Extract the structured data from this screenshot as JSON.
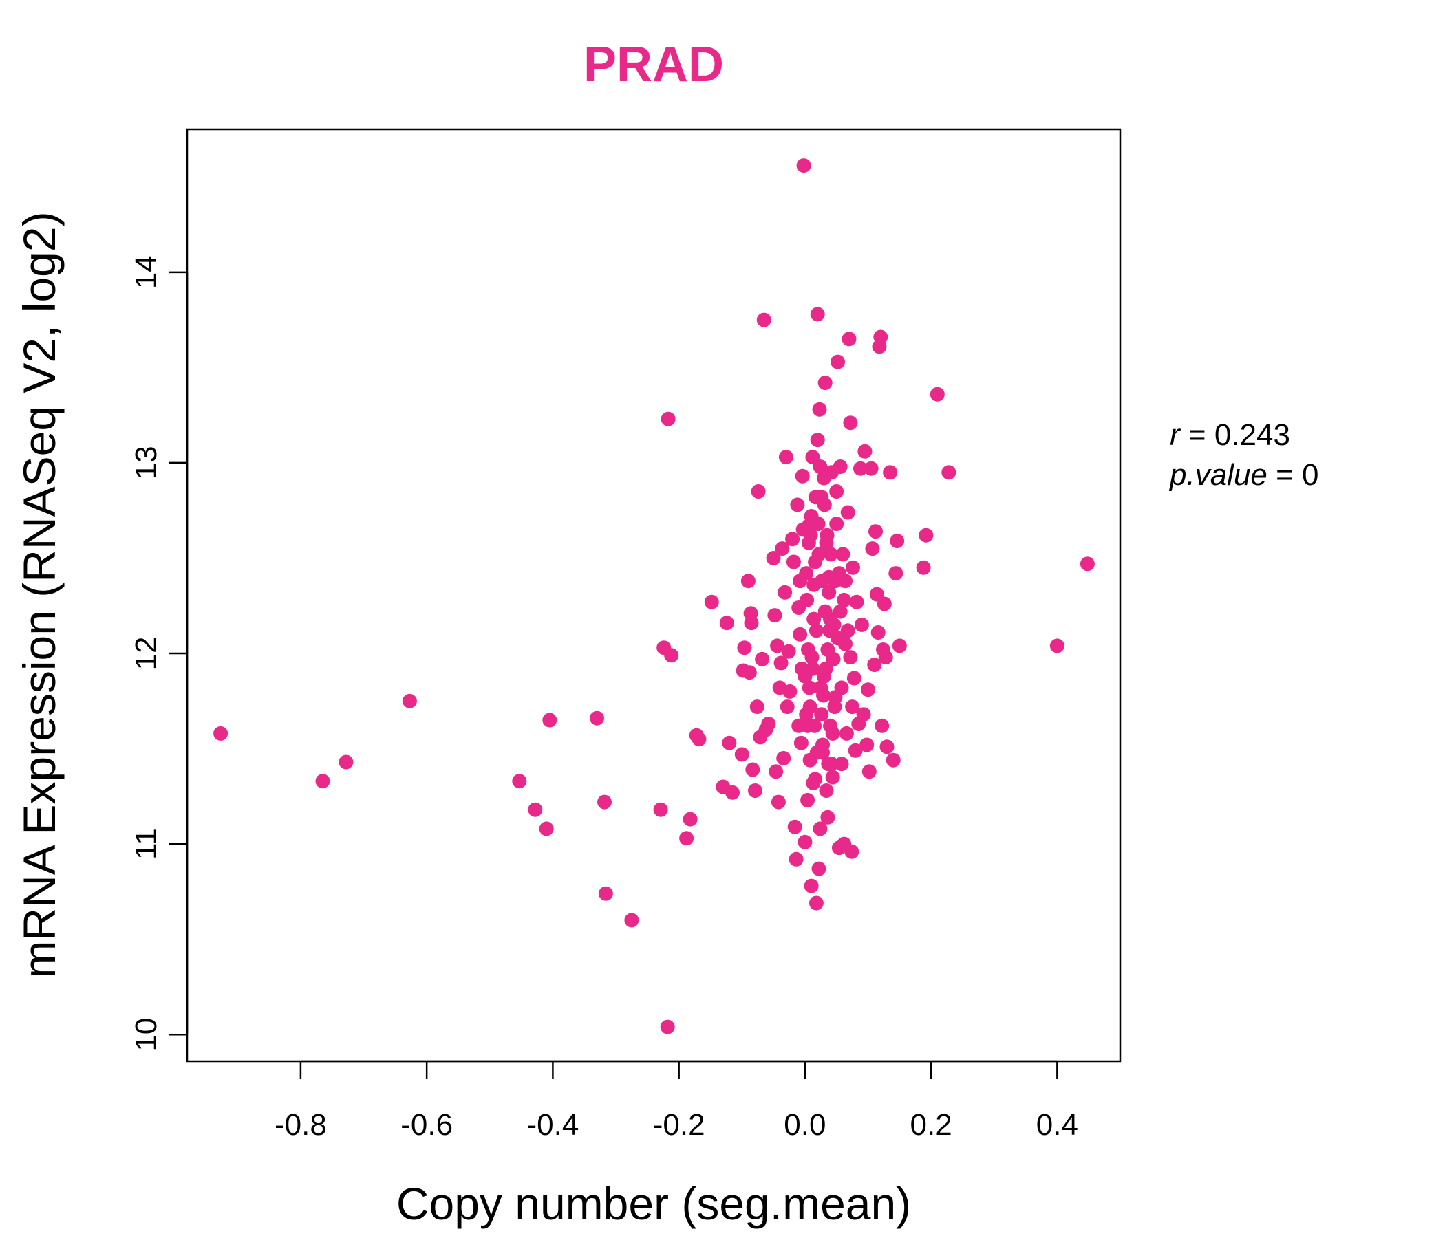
{
  "colors": {
    "point": "#E8298A",
    "title": "#E8298A",
    "axis": "#000000"
  },
  "chart_data": {
    "type": "scatter",
    "title": "PRAD",
    "xlabel": "Copy number (seg.mean)",
    "ylabel": "mRNA Expression (RNASeq V2, log2)",
    "xlim": [
      -0.98,
      0.5
    ],
    "ylim": [
      9.86,
      14.75
    ],
    "xticks": [
      -0.8,
      -0.6,
      -0.4,
      -0.2,
      0.0,
      0.2,
      0.4
    ],
    "xtick_labels": [
      "-0.8",
      "-0.6",
      "-0.4",
      "-0.2",
      "0.0",
      "0.2",
      "0.4"
    ],
    "yticks": [
      10,
      11,
      12,
      13,
      14
    ],
    "ytick_labels": [
      "10",
      "11",
      "12",
      "13",
      "14"
    ],
    "stats": {
      "r_label": "r",
      "r_value": "0.243",
      "p_label": "p.value",
      "p_value": "0"
    },
    "points": [
      [
        -0.927,
        11.58
      ],
      [
        -0.765,
        11.33
      ],
      [
        -0.728,
        11.43
      ],
      [
        -0.627,
        11.75
      ],
      [
        -0.453,
        11.33
      ],
      [
        -0.428,
        11.18
      ],
      [
        -0.41,
        11.08
      ],
      [
        -0.405,
        11.65
      ],
      [
        -0.33,
        11.66
      ],
      [
        -0.318,
        11.22
      ],
      [
        -0.316,
        10.74
      ],
      [
        -0.275,
        10.6
      ],
      [
        -0.229,
        11.18
      ],
      [
        -0.224,
        12.03
      ],
      [
        -0.218,
        10.04
      ],
      [
        -0.217,
        13.23
      ],
      [
        -0.212,
        11.99
      ],
      [
        -0.188,
        11.03
      ],
      [
        -0.182,
        11.13
      ],
      [
        -0.172,
        11.57
      ],
      [
        -0.168,
        11.55
      ],
      [
        -0.148,
        12.27
      ],
      [
        -0.13,
        11.3
      ],
      [
        -0.124,
        12.16
      ],
      [
        -0.12,
        11.53
      ],
      [
        -0.115,
        11.27
      ],
      [
        -0.1,
        11.47
      ],
      [
        -0.098,
        11.91
      ],
      [
        -0.096,
        12.03
      ],
      [
        -0.09,
        12.38
      ],
      [
        -0.088,
        11.9
      ],
      [
        -0.086,
        12.21
      ],
      [
        -0.085,
        12.16
      ],
      [
        -0.083,
        11.39
      ],
      [
        -0.079,
        11.28
      ],
      [
        -0.076,
        11.72
      ],
      [
        -0.074,
        12.85
      ],
      [
        -0.071,
        11.56
      ],
      [
        -0.068,
        11.97
      ],
      [
        -0.065,
        13.75
      ],
      [
        -0.062,
        11.6
      ],
      [
        -0.058,
        11.63
      ],
      [
        -0.05,
        12.5
      ],
      [
        -0.048,
        12.2
      ],
      [
        -0.046,
        11.38
      ],
      [
        -0.044,
        12.04
      ],
      [
        -0.042,
        11.22
      ],
      [
        -0.04,
        11.82
      ],
      [
        -0.038,
        11.95
      ],
      [
        -0.036,
        12.55
      ],
      [
        -0.034,
        11.45
      ],
      [
        -0.032,
        12.32
      ],
      [
        -0.03,
        13.03
      ],
      [
        -0.028,
        11.72
      ],
      [
        -0.026,
        12.01
      ],
      [
        -0.024,
        11.8
      ],
      [
        -0.02,
        12.6
      ],
      [
        -0.018,
        12.48
      ],
      [
        -0.016,
        11.09
      ],
      [
        -0.014,
        10.92
      ],
      [
        -0.012,
        12.78
      ],
      [
        -0.01,
        12.24
      ],
      [
        -0.008,
        12.1
      ],
      [
        -0.006,
        11.53
      ],
      [
        -0.004,
        12.93
      ],
      [
        -0.002,
        14.56
      ],
      [
        0.0,
        11.01
      ],
      [
        0.002,
        11.68
      ],
      [
        0.004,
        11.23
      ],
      [
        0.006,
        12.67
      ],
      [
        0.008,
        11.44
      ],
      [
        0.01,
        10.78
      ],
      [
        0.012,
        13.03
      ],
      [
        0.014,
        12.36
      ],
      [
        0.016,
        11.34
      ],
      [
        0.018,
        10.69
      ],
      [
        0.02,
        13.78
      ],
      [
        0.022,
        10.87
      ],
      [
        0.024,
        11.08
      ],
      [
        0.026,
        12.82
      ],
      [
        0.028,
        11.48
      ],
      [
        0.03,
        11.88
      ],
      [
        0.032,
        13.42
      ],
      [
        0.034,
        12.58
      ],
      [
        0.036,
        11.14
      ],
      [
        0.038,
        12.4
      ],
      [
        0.04,
        11.62
      ],
      [
        0.042,
        12.95
      ],
      [
        0.044,
        11.35
      ],
      [
        0.046,
        12.15
      ],
      [
        0.048,
        11.77
      ],
      [
        0.05,
        12.68
      ],
      [
        0.052,
        13.53
      ],
      [
        0.054,
        10.98
      ],
      [
        0.056,
        12.98
      ],
      [
        0.058,
        11.42
      ],
      [
        0.06,
        12.52
      ],
      [
        0.062,
        11.0
      ],
      [
        0.064,
        12.05
      ],
      [
        0.066,
        11.58
      ],
      [
        0.068,
        12.74
      ],
      [
        0.07,
        13.65
      ],
      [
        0.072,
        13.21
      ],
      [
        0.074,
        10.96
      ],
      [
        0.076,
        12.45
      ],
      [
        0.078,
        11.87
      ],
      [
        0.08,
        11.49
      ],
      [
        0.082,
        12.27
      ],
      [
        0.085,
        11.63
      ],
      [
        0.088,
        12.97
      ],
      [
        0.09,
        12.15
      ],
      [
        0.093,
        11.68
      ],
      [
        0.095,
        13.06
      ],
      [
        0.098,
        11.52
      ],
      [
        0.1,
        11.81
      ],
      [
        0.102,
        11.38
      ],
      [
        0.105,
        12.97
      ],
      [
        0.107,
        12.55
      ],
      [
        0.11,
        11.94
      ],
      [
        0.112,
        12.64
      ],
      [
        0.114,
        12.31
      ],
      [
        0.116,
        12.11
      ],
      [
        0.118,
        13.61
      ],
      [
        0.12,
        13.66
      ],
      [
        0.122,
        11.62
      ],
      [
        0.124,
        12.02
      ],
      [
        0.126,
        12.26
      ],
      [
        0.128,
        11.98
      ],
      [
        0.13,
        11.51
      ],
      [
        0.135,
        12.95
      ],
      [
        0.14,
        11.44
      ],
      [
        0.144,
        12.42
      ],
      [
        0.146,
        12.59
      ],
      [
        0.15,
        12.04
      ],
      [
        0.188,
        12.45
      ],
      [
        0.192,
        12.62
      ],
      [
        0.21,
        13.36
      ],
      [
        0.228,
        12.95
      ],
      [
        0.4,
        12.04
      ],
      [
        0.448,
        12.47
      ],
      [
        0.005,
        12.02
      ],
      [
        0.012,
        11.92
      ],
      [
        0.018,
        12.12
      ],
      [
        0.025,
        11.82
      ],
      [
        0.032,
        12.22
      ],
      [
        0.008,
        11.72
      ],
      [
        0.038,
        12.32
      ],
      [
        0.015,
        11.62
      ],
      [
        0.045,
        11.97
      ],
      [
        0.002,
        12.42
      ],
      [
        0.022,
        12.52
      ],
      [
        0.028,
        11.52
      ],
      [
        0.035,
        12.62
      ],
      [
        0.01,
        12.72
      ],
      [
        0.042,
        11.42
      ],
      [
        0.017,
        12.82
      ],
      [
        0.052,
        12.08
      ],
      [
        0.0,
        11.88
      ],
      [
        0.03,
        12.92
      ],
      [
        0.013,
        11.32
      ],
      [
        0.048,
        12.38
      ],
      [
        0.006,
        12.58
      ],
      [
        0.026,
        11.68
      ],
      [
        0.04,
        12.18
      ],
      [
        0.02,
        13.12
      ],
      [
        0.034,
        11.28
      ],
      [
        0.058,
        11.82
      ],
      [
        0.003,
        12.28
      ],
      [
        0.024,
        12.98
      ],
      [
        0.062,
        12.28
      ],
      [
        0.011,
        11.98
      ],
      [
        0.044,
        11.58
      ],
      [
        0.016,
        12.48
      ],
      [
        0.036,
        12.02
      ],
      [
        0.029,
        11.78
      ],
      [
        0.054,
        12.42
      ],
      [
        0.007,
        11.82
      ],
      [
        0.021,
        12.68
      ],
      [
        0.039,
        12.12
      ],
      [
        0.014,
        12.18
      ],
      [
        0.047,
        11.72
      ],
      [
        0.027,
        12.38
      ],
      [
        0.033,
        11.92
      ],
      [
        0.019,
        11.48
      ],
      [
        0.009,
        12.62
      ],
      [
        0.041,
        12.52
      ],
      [
        0.023,
        13.28
      ],
      [
        0.056,
        12.22
      ],
      [
        0.031,
        12.78
      ],
      [
        0.004,
        11.62
      ],
      [
        0.037,
        11.42
      ],
      [
        0.05,
        12.85
      ],
      [
        0.068,
        12.12
      ],
      [
        0.072,
        11.98
      ],
      [
        0.064,
        12.38
      ],
      [
        0.075,
        11.72
      ],
      [
        -0.005,
        11.92
      ],
      [
        -0.008,
        12.38
      ],
      [
        -0.003,
        12.65
      ],
      [
        -0.01,
        11.62
      ]
    ]
  }
}
